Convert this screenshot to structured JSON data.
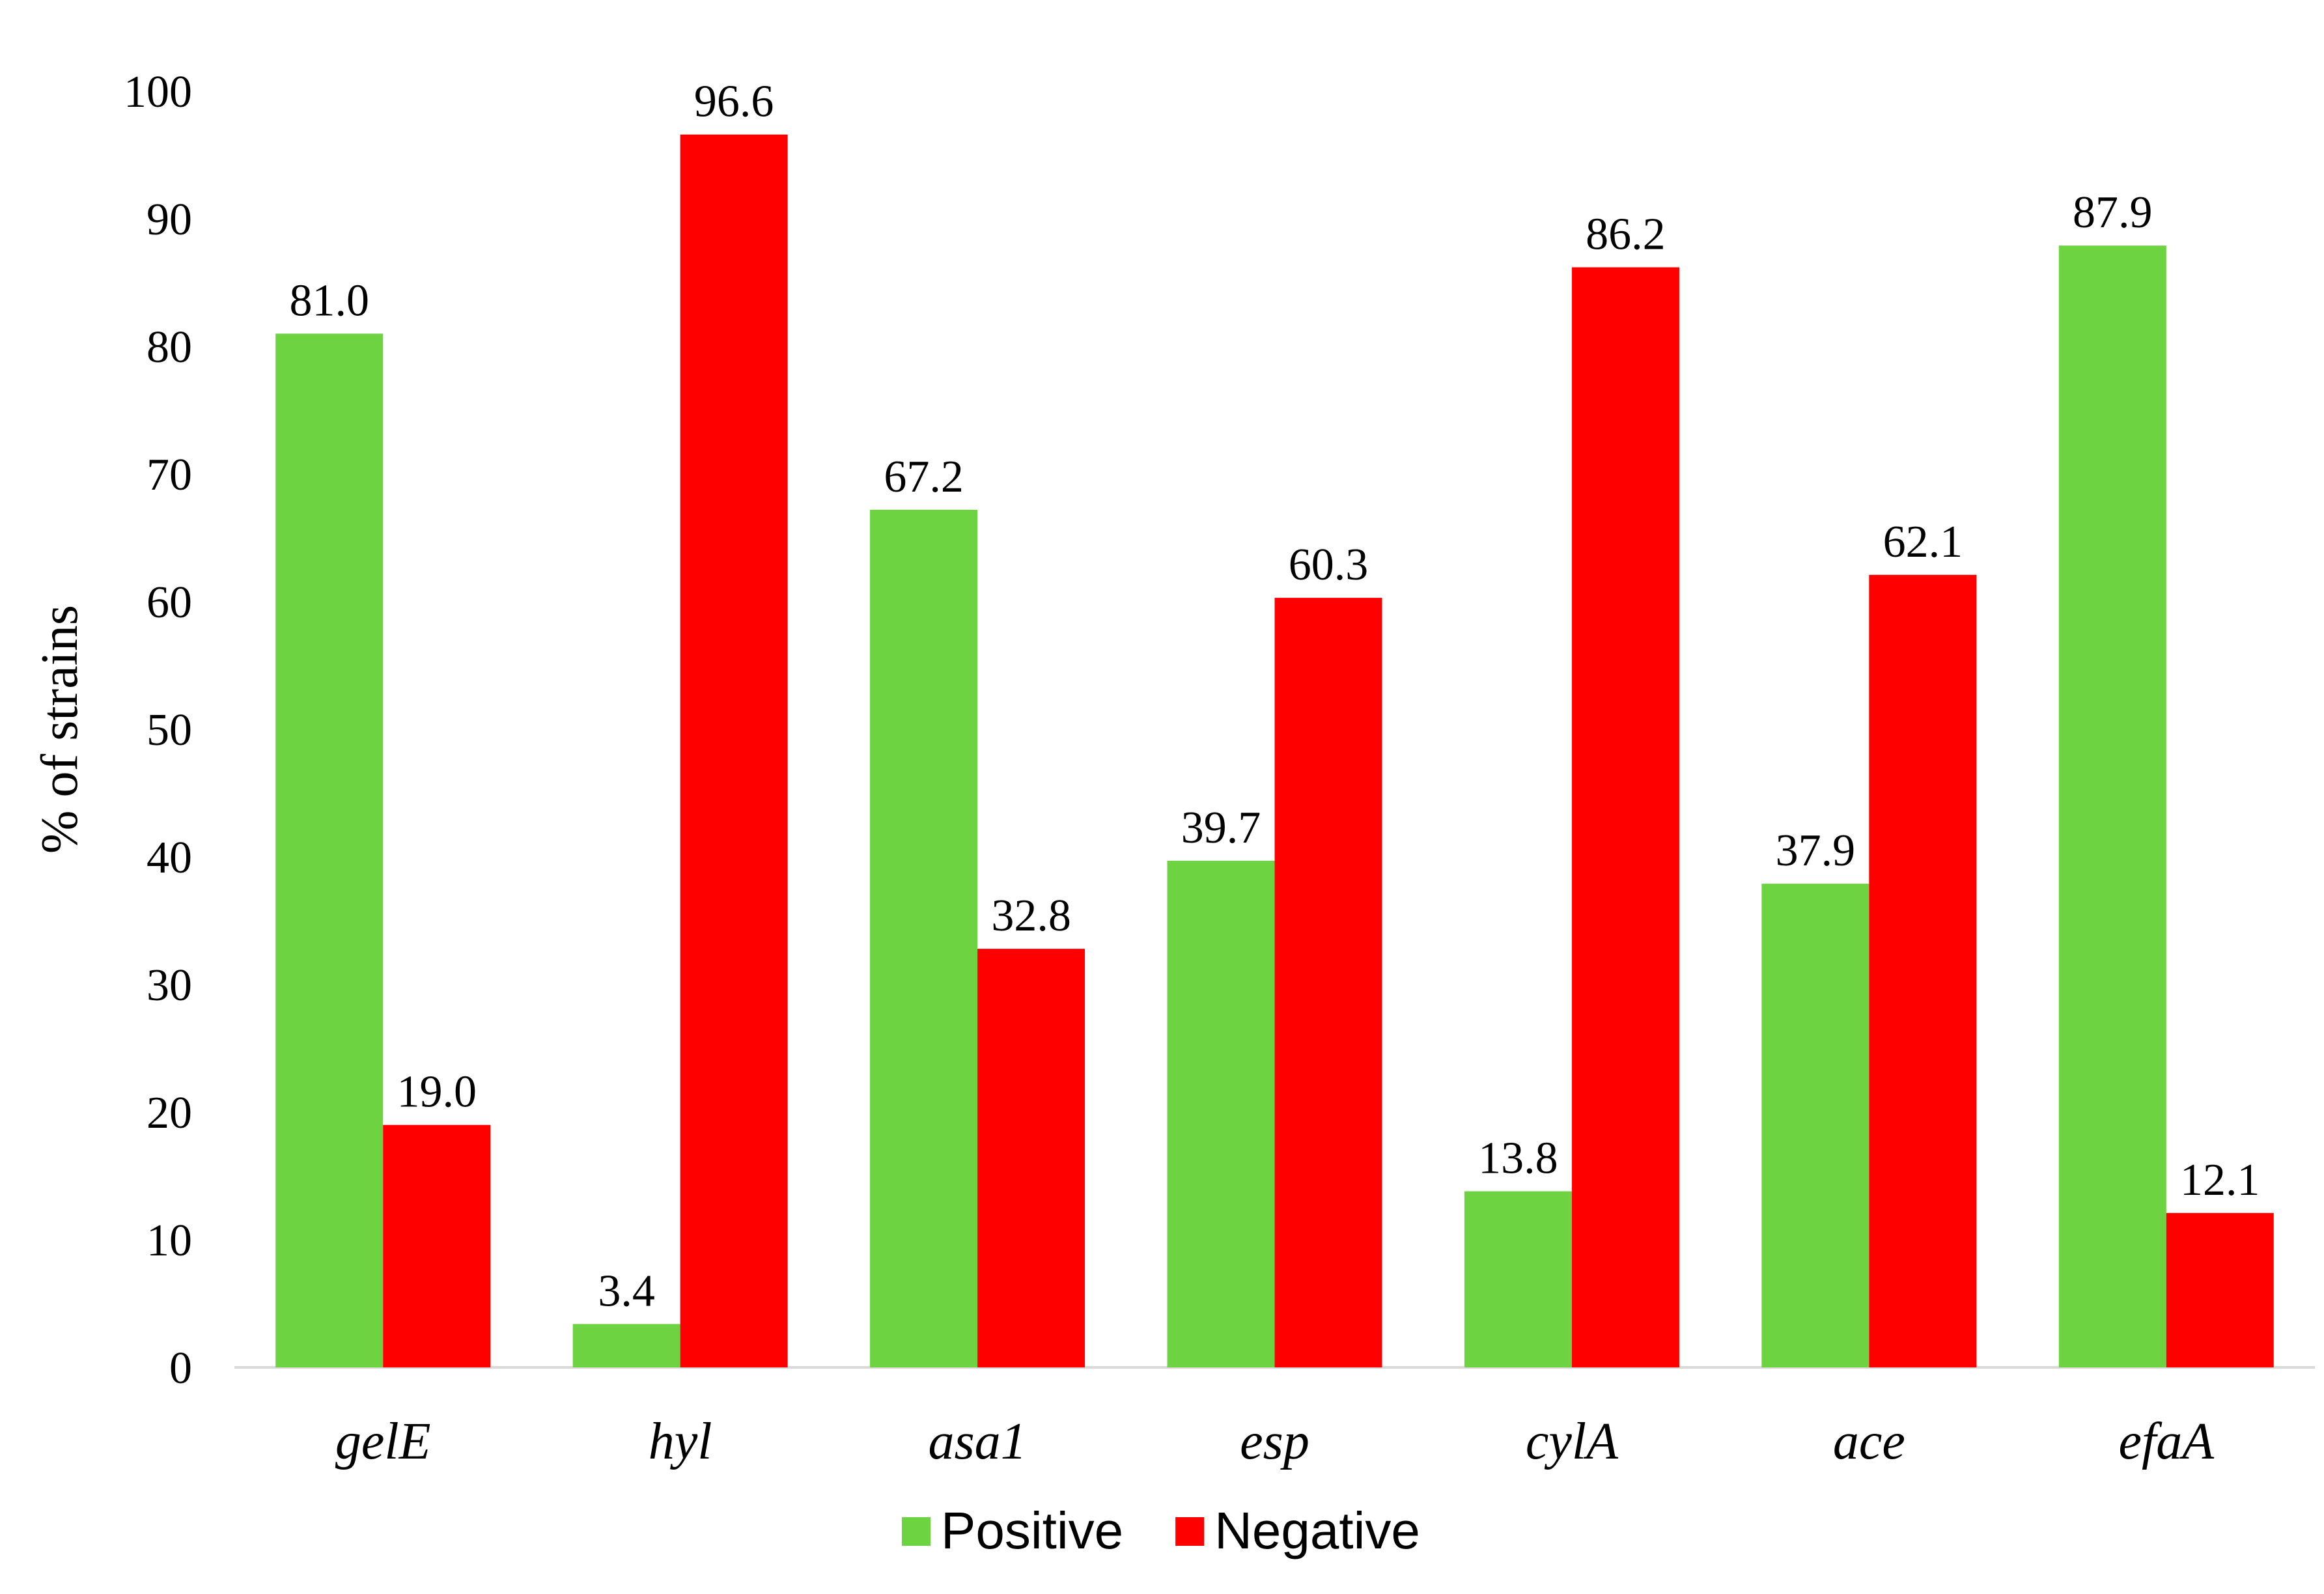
{
  "chart_data": {
    "type": "bar",
    "title": "",
    "xlabel": "",
    "ylabel": "% of strains",
    "ylim": [
      0,
      100
    ],
    "yticks": [
      0,
      10,
      20,
      30,
      40,
      50,
      60,
      70,
      80,
      90,
      100
    ],
    "grid": false,
    "legend_position": "bottom",
    "categories": [
      "gelE",
      "hyl",
      "asa1",
      "esp",
      "cylA",
      "ace",
      "efaA"
    ],
    "series": [
      {
        "name": "Positive",
        "color": "#6dd341",
        "values": [
          81.0,
          3.4,
          67.2,
          39.7,
          13.8,
          37.9,
          87.9
        ],
        "labels": [
          "81.0",
          "3.4",
          "67.2",
          "39.7",
          "13.8",
          "37.9",
          "87.9"
        ]
      },
      {
        "name": "Negative",
        "color": "#ff0000",
        "values": [
          19.0,
          96.6,
          32.8,
          60.3,
          86.2,
          62.1,
          12.1
        ],
        "labels": [
          "19.0",
          "96.6",
          "32.8",
          "60.3",
          "86.2",
          "62.1",
          "12.1"
        ]
      }
    ]
  }
}
